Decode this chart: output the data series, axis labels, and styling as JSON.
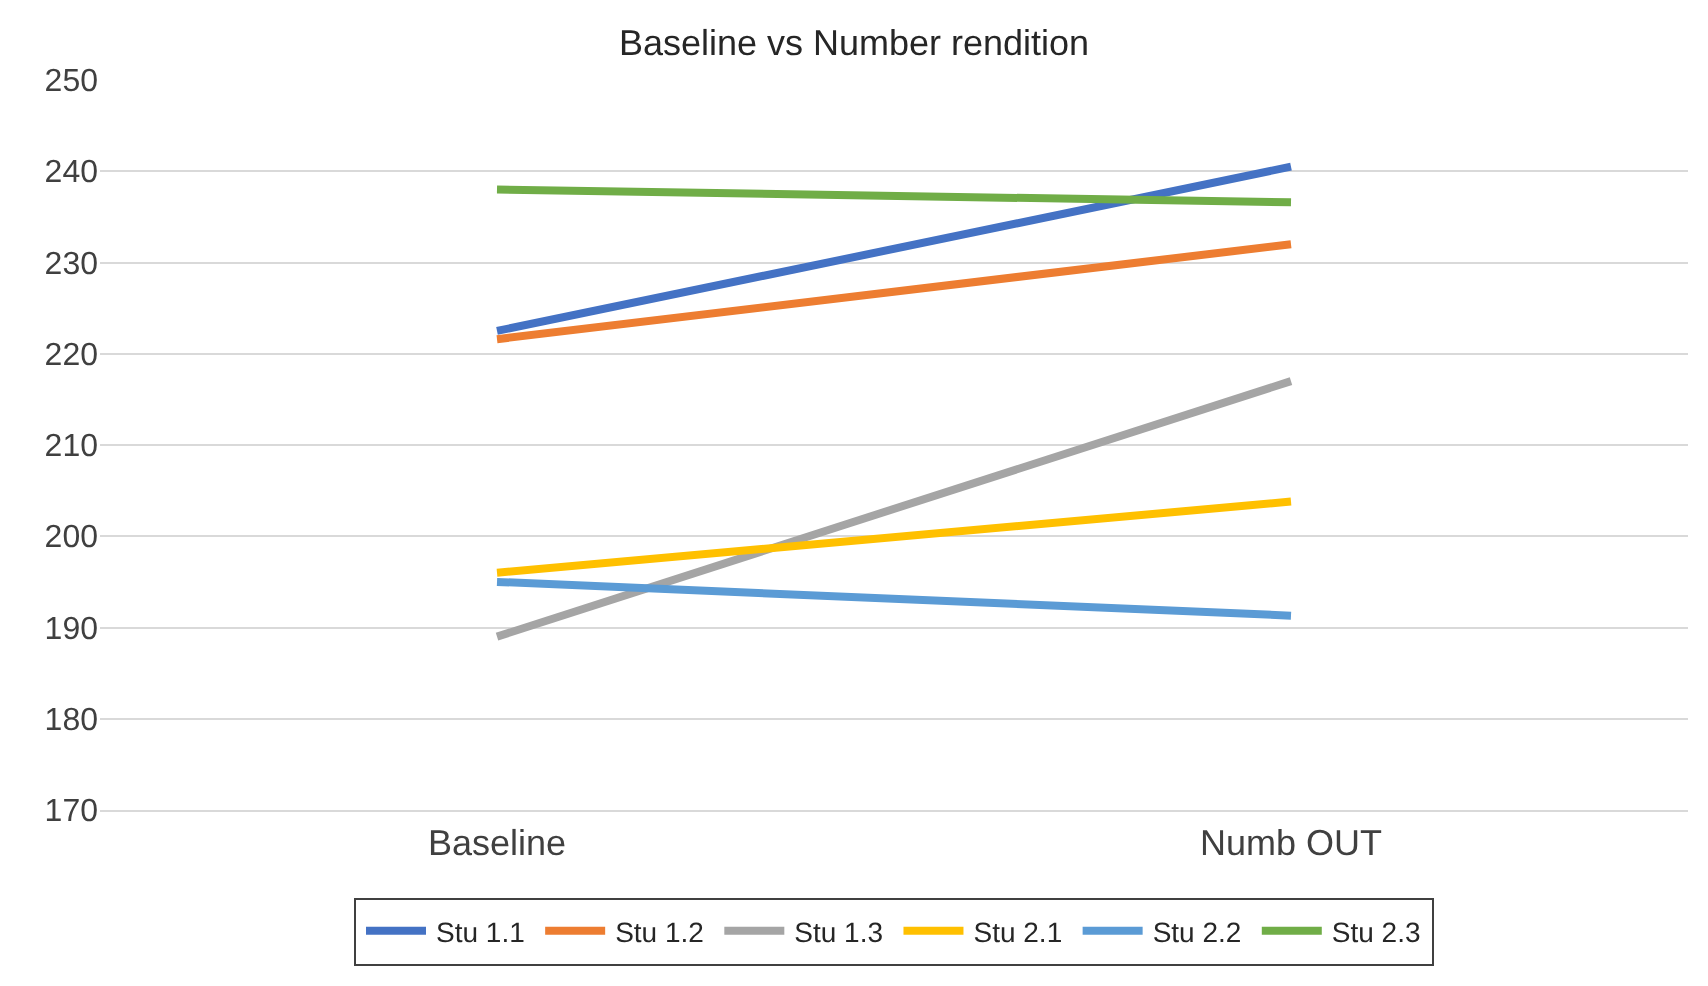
{
  "chart_data": {
    "type": "line",
    "title": "Baseline vs Number rendition",
    "categories": [
      "Baseline",
      "Numb OUT"
    ],
    "series": [
      {
        "name": "Stu 1.1",
        "color": "#4472c4",
        "values": [
          222.5,
          240.5
        ]
      },
      {
        "name": "Stu 1.2",
        "color": "#ed7d31",
        "values": [
          221.6,
          232
        ]
      },
      {
        "name": "Stu 1.3",
        "color": "#a5a5a5",
        "values": [
          189,
          217
        ]
      },
      {
        "name": "Stu 2.1",
        "color": "#ffc000",
        "values": [
          196,
          203.8
        ]
      },
      {
        "name": "Stu 2.2",
        "color": "#5b9bd5",
        "values": [
          195,
          191.3
        ]
      },
      {
        "name": "Stu 2.3",
        "color": "#70ad47",
        "values": [
          238,
          236.6
        ]
      }
    ],
    "ylim": [
      170,
      250
    ],
    "yticks": [
      170,
      180,
      190,
      200,
      210,
      220,
      230,
      240,
      250
    ],
    "grid": "y",
    "legend": "bottom",
    "marker": "none",
    "line_style": "solid"
  }
}
